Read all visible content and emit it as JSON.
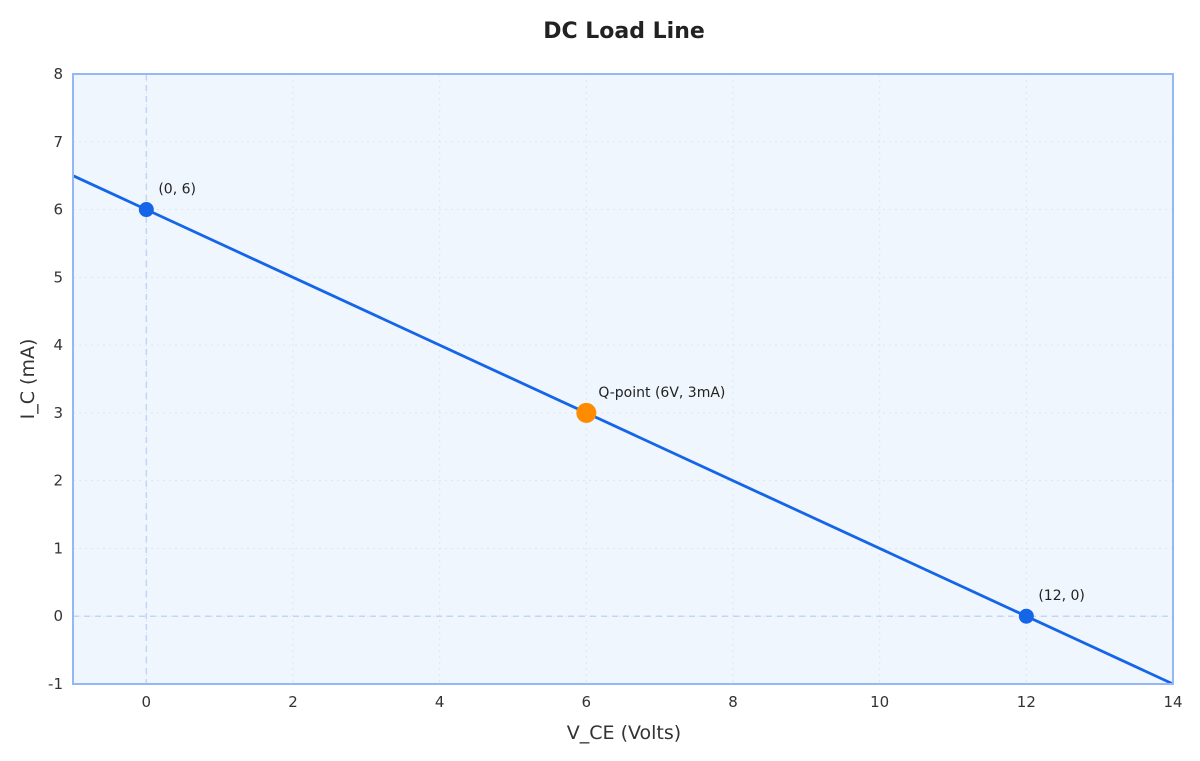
{
  "chart_data": {
    "type": "line",
    "title": "DC Load Line",
    "xlabel": "V_CE (Volts)",
    "ylabel": "I_C (mA)",
    "xlim": [
      -1,
      14
    ],
    "ylim": [
      -1,
      8
    ],
    "xticks": [
      0,
      2,
      4,
      6,
      8,
      10,
      12,
      14
    ],
    "yticks": [
      -1,
      0,
      1,
      2,
      3,
      4,
      5,
      6,
      7,
      8
    ],
    "grid": true,
    "series": [
      {
        "x": [
          -1,
          14
        ],
        "y": [
          6.5,
          -1
        ],
        "color": "#1565e8"
      }
    ],
    "reference_lines": {
      "x": 0,
      "y": 0
    },
    "points": [
      {
        "x": 0,
        "y": 6,
        "label": "(0, 6)",
        "color": "#1565e8"
      },
      {
        "x": 6,
        "y": 3,
        "label": "Q-point (6V, 3mA)",
        "color": "#ff8c00"
      },
      {
        "x": 12,
        "y": 0,
        "label": "(12, 0)",
        "color": "#1565e8"
      }
    ],
    "colors": {
      "background": "#f0f6fd",
      "frame": "#93b8f5",
      "grid": "#dde5f0",
      "reference": "#c3d5f5"
    }
  }
}
